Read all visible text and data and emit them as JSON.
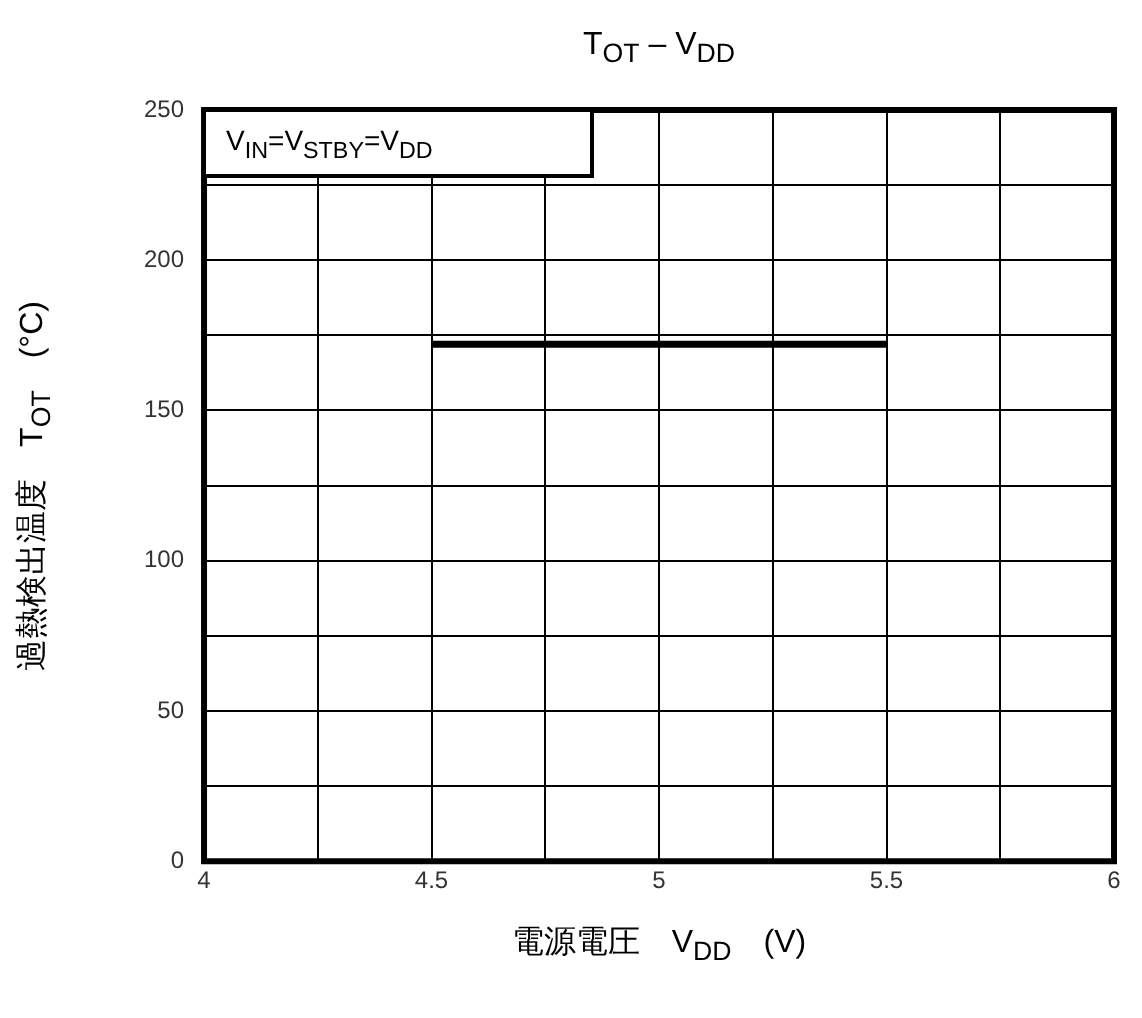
{
  "chart_data": {
    "type": "line",
    "title": "T$_{OT}$ – V$_{DD}$",
    "xlabel": "電源電圧　V$_{DD}$　(V)",
    "ylabel": "過熱検出温度　T$_{OT}$　(°C)",
    "annotations": [
      "V$_{IN}$=V$_{STBY}$=V$_{DD}$"
    ],
    "series": [
      {
        "color": "#000000",
        "x": [
          4.5,
          5.5
        ],
        "values": [
          172,
          172
        ]
      }
    ],
    "xlim": [
      4,
      6
    ],
    "xticks": [
      4,
      {
        "value": 4.25,
        "label": null
      },
      4.5,
      {
        "value": 4.75,
        "label": null
      },
      5,
      {
        "value": 5.25,
        "label": null
      },
      5.5,
      {
        "value": 5.75,
        "label": null
      },
      6
    ],
    "ylim": [
      0,
      250
    ],
    "yticks": [
      0,
      {
        "value": 25,
        "label": null
      },
      50,
      {
        "value": 75,
        "label": null
      },
      100,
      {
        "value": 125,
        "label": null
      },
      150,
      {
        "value": 175,
        "label": null
      },
      200,
      {
        "value": 225,
        "label": null
      },
      250
    ],
    "grid": true,
    "marker": "none",
    "legend": false
  }
}
